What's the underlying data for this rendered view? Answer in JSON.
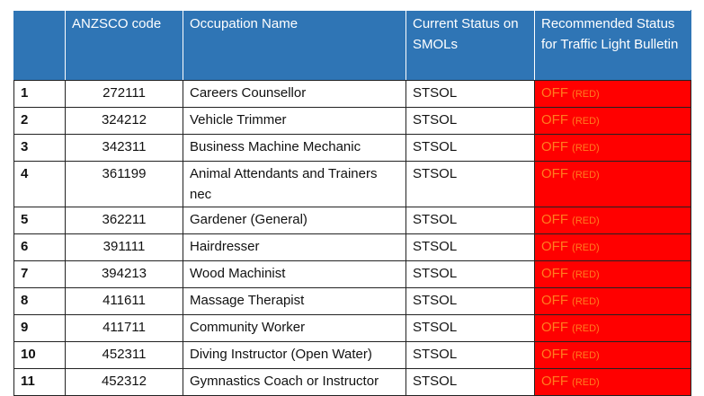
{
  "headers": {
    "num": "",
    "code": "ANZSCO code",
    "name": "Occupation Name",
    "current": "Current Status on SMOLs",
    "recommended": "Recommended Status for Traffic Light Bulletin"
  },
  "rows": [
    {
      "num": "1",
      "code": "272111",
      "name": "Careers Counsellor",
      "current": "STSOL",
      "off": "OFF",
      "red": "(RED)"
    },
    {
      "num": "2",
      "code": "324212",
      "name": "Vehicle Trimmer",
      "current": "STSOL",
      "off": "OFF",
      "red": "(RED)"
    },
    {
      "num": "3",
      "code": "342311",
      "name": "Business Machine Mechanic",
      "current": "STSOL",
      "off": "OFF",
      "red": "(RED)"
    },
    {
      "num": "4",
      "code": "361199",
      "name": "Animal Attendants and Trainers nec",
      "current": "STSOL",
      "off": "OFF",
      "red": "(RED)"
    },
    {
      "num": "5",
      "code": "362211",
      "name": "Gardener (General)",
      "current": "STSOL",
      "off": "OFF",
      "red": "(RED)"
    },
    {
      "num": "6",
      "code": "391111",
      "name": "Hairdresser",
      "current": "STSOL",
      "off": "OFF",
      "red": "(RED)"
    },
    {
      "num": "7",
      "code": "394213",
      "name": "Wood Machinist",
      "current": "STSOL",
      "off": "OFF",
      "red": "(RED)"
    },
    {
      "num": "8",
      "code": "411611",
      "name": "Massage Therapist",
      "current": "STSOL",
      "off": "OFF",
      "red": "(RED)"
    },
    {
      "num": "9",
      "code": "411711",
      "name": "Community Worker",
      "current": "STSOL",
      "off": "OFF",
      "red": "(RED)"
    },
    {
      "num": "10",
      "code": "452311",
      "name": "Diving Instructor (Open Water)",
      "current": "STSOL",
      "off": "OFF",
      "red": "(RED)"
    },
    {
      "num": "11",
      "code": "452312",
      "name": "Gymnastics Coach or Instructor",
      "current": "STSOL",
      "off": "OFF",
      "red": "(RED)"
    }
  ],
  "colors": {
    "header_bg": "#2f75b5",
    "status_bg": "#ff0000",
    "status_text": "#ff7c1f"
  }
}
